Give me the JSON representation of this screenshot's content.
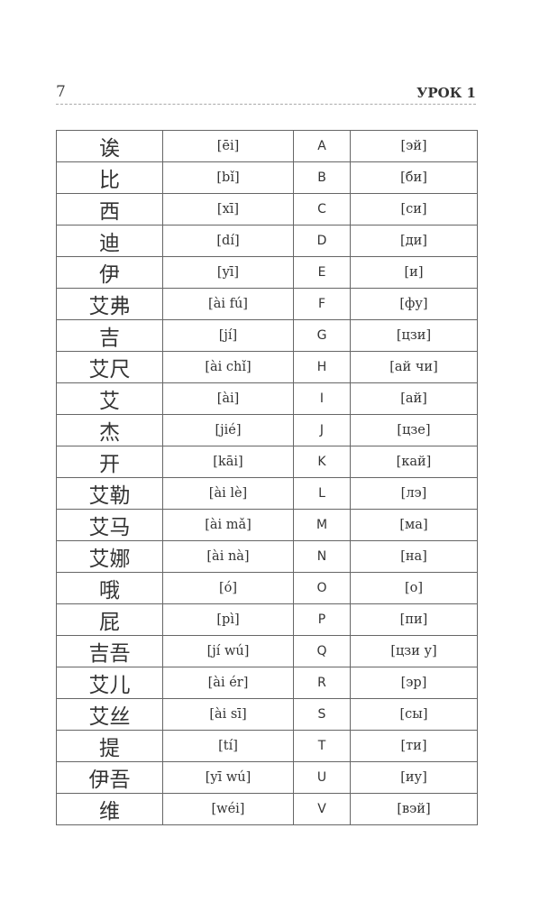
{
  "header": {
    "page_number": "7",
    "lesson_title": "УРОК 1"
  },
  "table": {
    "rows": [
      {
        "chinese": "诶",
        "pinyin": "[ēi]",
        "letter": "A",
        "russian": "[эй]"
      },
      {
        "chinese": "比",
        "pinyin": "[bǐ]",
        "letter": "B",
        "russian": "[би]"
      },
      {
        "chinese": "西",
        "pinyin": "[xī]",
        "letter": "C",
        "russian": "[си]"
      },
      {
        "chinese": "迪",
        "pinyin": "[dí]",
        "letter": "D",
        "russian": "[ди]"
      },
      {
        "chinese": "伊",
        "pinyin": "[yī]",
        "letter": "E",
        "russian": "[и]"
      },
      {
        "chinese": "艾弗",
        "pinyin": "[ài fú]",
        "letter": "F",
        "russian": "[фу]"
      },
      {
        "chinese": "吉",
        "pinyin": "[jí]",
        "letter": "G",
        "russian": "[цзи]"
      },
      {
        "chinese": "艾尺",
        "pinyin": "[ài chǐ]",
        "letter": "H",
        "russian": "[ай чи]"
      },
      {
        "chinese": "艾",
        "pinyin": "[ài]",
        "letter": "I",
        "russian": "[ай]"
      },
      {
        "chinese": "杰",
        "pinyin": "[jié]",
        "letter": "J",
        "russian": "[цзе]"
      },
      {
        "chinese": "开",
        "pinyin": "[kāi]",
        "letter": "K",
        "russian": "[кай]"
      },
      {
        "chinese": "艾勒",
        "pinyin": "[ài lè]",
        "letter": "L",
        "russian": "[лэ]"
      },
      {
        "chinese": "艾马",
        "pinyin": "[ài mǎ]",
        "letter": "M",
        "russian": "[ма]"
      },
      {
        "chinese": "艾娜",
        "pinyin": "[ài nà]",
        "letter": "N",
        "russian": "[на]"
      },
      {
        "chinese": "哦",
        "pinyin": "[ó]",
        "letter": "O",
        "russian": "[о]"
      },
      {
        "chinese": "屁",
        "pinyin": "[pì]",
        "letter": "P",
        "russian": "[пи]"
      },
      {
        "chinese": "吉吾",
        "pinyin": "[jí wú]",
        "letter": "Q",
        "russian": "[цзи у]"
      },
      {
        "chinese": "艾儿",
        "pinyin": "[ài ér]",
        "letter": "R",
        "russian": "[эр]"
      },
      {
        "chinese": "艾丝",
        "pinyin": "[ài sī]",
        "letter": "S",
        "russian": "[сы]"
      },
      {
        "chinese": "提",
        "pinyin": "[tí]",
        "letter": "T",
        "russian": "[ти]"
      },
      {
        "chinese": "伊吾",
        "pinyin": "[yī wú]",
        "letter": "U",
        "russian": "[иу]"
      },
      {
        "chinese": "维",
        "pinyin": "[wéi]",
        "letter": "V",
        "russian": "[вэй]"
      }
    ]
  }
}
